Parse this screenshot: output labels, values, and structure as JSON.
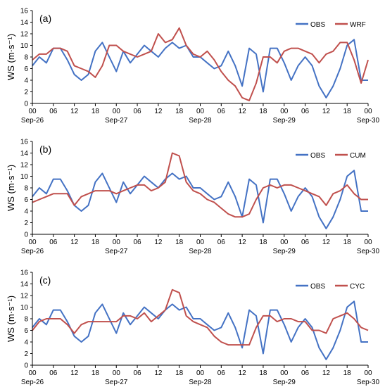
{
  "colors": {
    "obs": "#4472C4",
    "model": "#C0504D",
    "axis": "#000000"
  },
  "chart_data": [
    {
      "type": "line",
      "panel_label": "(a)",
      "ylabel": "WS (m·s⁻¹)",
      "ylim": [
        0,
        16
      ],
      "yticks": [
        "0",
        "2",
        "4",
        "6",
        "8",
        "10",
        "12",
        "14",
        "16"
      ],
      "xlim": [
        0,
        96
      ],
      "xticks": [
        "00",
        "06",
        "12",
        "18",
        "00",
        "06",
        "12",
        "18",
        "00",
        "06",
        "12",
        "18",
        "00",
        "06",
        "12",
        "18",
        "00"
      ],
      "date_labels": [
        "Sep-26",
        "Sep-27",
        "Sep-28",
        "Sep-29",
        "Sep-30"
      ],
      "legend_position": "top-right",
      "grid": false,
      "x_hours": [
        0,
        2,
        4,
        6,
        8,
        10,
        12,
        14,
        16,
        18,
        20,
        22,
        24,
        26,
        28,
        30,
        32,
        34,
        36,
        38,
        40,
        42,
        44,
        46,
        48,
        50,
        52,
        54,
        56,
        58,
        60,
        62,
        64,
        66,
        68,
        70,
        72,
        74,
        76,
        78,
        80,
        82,
        84,
        86,
        88,
        90,
        92,
        94,
        96
      ],
      "series": [
        {
          "name": "OBS",
          "values": [
            6.5,
            8,
            7,
            9.5,
            9.5,
            7.5,
            5,
            4,
            5,
            9,
            10.5,
            8,
            5.5,
            9,
            7,
            8.5,
            10,
            9,
            8,
            9.5,
            10.5,
            9.5,
            10,
            8,
            8,
            7,
            6,
            6.5,
            9,
            6.5,
            3,
            9.5,
            8.5,
            2,
            9.5,
            9.5,
            7,
            4,
            6.5,
            8,
            6.5,
            3,
            1,
            3,
            6,
            10,
            11,
            4,
            4
          ]
        },
        {
          "name": "WRF",
          "values": [
            7.5,
            8.5,
            8.5,
            9.5,
            9.5,
            9,
            6.5,
            6,
            5.5,
            4.5,
            6.5,
            10,
            10,
            9,
            8.5,
            8,
            8.5,
            9,
            12,
            10.5,
            11,
            13,
            10,
            8.5,
            8,
            9,
            7.5,
            5.5,
            4,
            3,
            1,
            0.5,
            3.5,
            8,
            8,
            7,
            9,
            9.5,
            9.5,
            9,
            8.5,
            7,
            8.5,
            9,
            10.5,
            10.5,
            7.5,
            3.5,
            7.5
          ]
        }
      ]
    },
    {
      "type": "line",
      "panel_label": "(b)",
      "ylabel": "WS (m·s⁻¹)",
      "ylim": [
        0,
        16
      ],
      "yticks": [
        "0",
        "2",
        "4",
        "6",
        "8",
        "10",
        "12",
        "14",
        "16"
      ],
      "xlim": [
        0,
        96
      ],
      "xticks": [
        "00",
        "06",
        "12",
        "18",
        "00",
        "06",
        "12",
        "18",
        "00",
        "06",
        "12",
        "18",
        "00",
        "06",
        "12",
        "18",
        "00"
      ],
      "date_labels": [
        "Sep-26",
        "Sep-27",
        "Sep-28",
        "Sep-29",
        "Sep-30"
      ],
      "legend_position": "top-right",
      "grid": false,
      "x_hours": [
        0,
        2,
        4,
        6,
        8,
        10,
        12,
        14,
        16,
        18,
        20,
        22,
        24,
        26,
        28,
        30,
        32,
        34,
        36,
        38,
        40,
        42,
        44,
        46,
        48,
        50,
        52,
        54,
        56,
        58,
        60,
        62,
        64,
        66,
        68,
        70,
        72,
        74,
        76,
        78,
        80,
        82,
        84,
        86,
        88,
        90,
        92,
        94,
        96
      ],
      "series": [
        {
          "name": "OBS",
          "values": [
            6.5,
            8,
            7,
            9.5,
            9.5,
            7.5,
            5,
            4,
            5,
            9,
            10.5,
            8,
            5.5,
            9,
            7,
            8.5,
            10,
            9,
            8,
            9.5,
            10.5,
            9.5,
            10,
            8,
            8,
            7,
            6,
            6.5,
            9,
            6.5,
            3,
            9.5,
            8.5,
            2,
            9.5,
            9.5,
            7,
            4,
            6.5,
            8,
            6.5,
            3,
            1,
            3,
            6,
            10,
            11,
            4,
            4
          ]
        },
        {
          "name": "CUM",
          "values": [
            5.5,
            6,
            6.5,
            7,
            7,
            7,
            5,
            6.5,
            7,
            7.5,
            7.5,
            7.5,
            7,
            7.5,
            8,
            8.5,
            8.5,
            7.5,
            8,
            9,
            14,
            13.5,
            9,
            7.5,
            7,
            6,
            5.5,
            4.5,
            3.5,
            3,
            3,
            3.5,
            6,
            8,
            8.5,
            8,
            8.5,
            8.5,
            8,
            7.5,
            7,
            6.5,
            5,
            7,
            7.5,
            8.5,
            7,
            6,
            6
          ]
        }
      ]
    },
    {
      "type": "line",
      "panel_label": "(c)",
      "ylabel": "WS (m·s⁻¹)",
      "ylim": [
        0,
        16
      ],
      "yticks": [
        "0",
        "2",
        "4",
        "6",
        "8",
        "10",
        "12",
        "14",
        "16"
      ],
      "xlim": [
        0,
        96
      ],
      "xticks": [
        "00",
        "06",
        "12",
        "18",
        "00",
        "06",
        "12",
        "18",
        "00",
        "06",
        "12",
        "18",
        "00",
        "06",
        "12",
        "18",
        "00"
      ],
      "date_labels": [
        "Sep-26",
        "Sep-27",
        "Sep-28",
        "Sep-29",
        "Sep-30"
      ],
      "legend_position": "top-right",
      "grid": false,
      "x_hours": [
        0,
        2,
        4,
        6,
        8,
        10,
        12,
        14,
        16,
        18,
        20,
        22,
        24,
        26,
        28,
        30,
        32,
        34,
        36,
        38,
        40,
        42,
        44,
        46,
        48,
        50,
        52,
        54,
        56,
        58,
        60,
        62,
        64,
        66,
        68,
        70,
        72,
        74,
        76,
        78,
        80,
        82,
        84,
        86,
        88,
        90,
        92,
        94,
        96
      ],
      "series": [
        {
          "name": "OBS",
          "values": [
            6.5,
            8,
            7,
            9.5,
            9.5,
            7.5,
            5,
            4,
            5,
            9,
            10.5,
            8,
            5.5,
            9,
            7,
            8.5,
            10,
            9,
            8,
            9.5,
            10.5,
            9.5,
            10,
            8,
            8,
            7,
            6,
            6.5,
            9,
            6.5,
            3,
            9.5,
            8.5,
            2,
            9.5,
            9.5,
            7,
            4,
            6.5,
            8,
            6.5,
            3,
            1,
            3,
            6,
            10,
            11,
            4,
            4
          ]
        },
        {
          "name": "CYC",
          "values": [
            6,
            7.5,
            8,
            8,
            8,
            7,
            5.5,
            7,
            7.5,
            7.5,
            7.5,
            7.5,
            7.5,
            8.5,
            8.5,
            8,
            9,
            7.5,
            8.5,
            9.5,
            13,
            12.5,
            8.5,
            7.5,
            7,
            6.5,
            5,
            4,
            3.5,
            3.5,
            3.5,
            3.5,
            6.5,
            8.5,
            8.5,
            7.5,
            8,
            8,
            7.5,
            7.5,
            6,
            6,
            5.5,
            8,
            8.5,
            9,
            8,
            6.5,
            6
          ]
        }
      ]
    }
  ]
}
